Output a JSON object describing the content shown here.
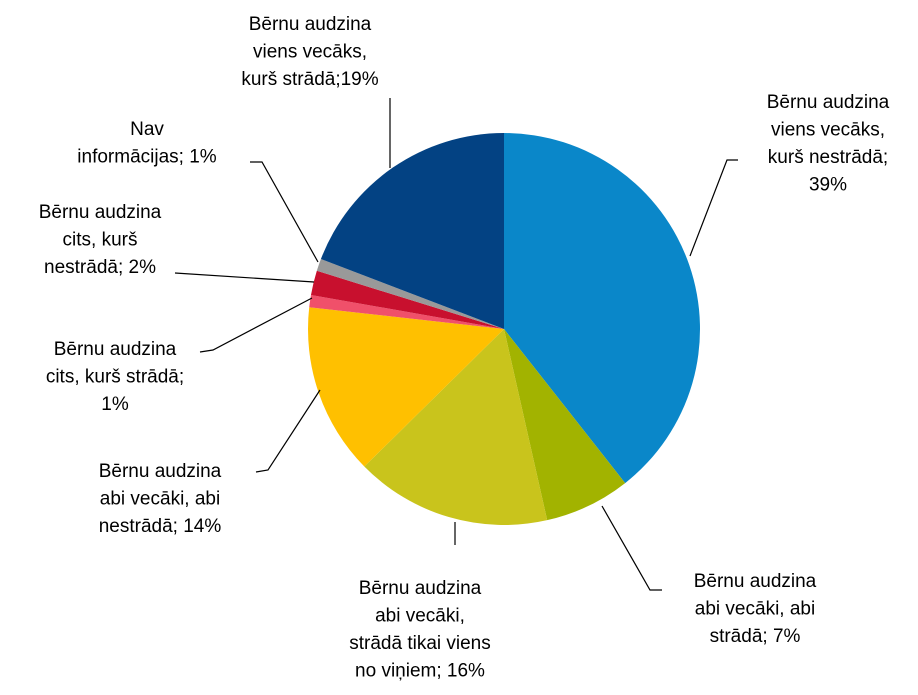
{
  "chart_data": {
    "type": "pie",
    "labels": [
      [
        "Bērnu audzina",
        "viens vecāks,",
        "kurš nestrādā;",
        "39%"
      ],
      [
        "Bērnu audzina",
        "abi vecāki, abi",
        "strādā; 7%"
      ],
      [
        "Bērnu audzina",
        "abi vecāki,",
        "strādā tikai viens",
        "no viņiem; 16%"
      ],
      [
        "Bērnu audzina",
        "abi vecāki, abi",
        "nestrādā; 14%"
      ],
      [
        "Bērnu audzina",
        "cits, kurš strādā;",
        "1%"
      ],
      [
        "Bērnu audzina",
        "cits, kurš",
        "nestrādā; 2%"
      ],
      [
        "Nav",
        "informācijas; 1%"
      ],
      [
        "Bērnu audzina",
        "viens vecāks,",
        "kurš strādā;19%"
      ]
    ],
    "values": [
      39,
      7,
      16,
      14,
      1,
      2,
      1,
      19
    ],
    "colors": [
      "#0a87c9",
      "#a2b300",
      "#c9c41c",
      "#ffc000",
      "#f0506a",
      "#c8102e",
      "#999999",
      "#034283"
    ]
  }
}
